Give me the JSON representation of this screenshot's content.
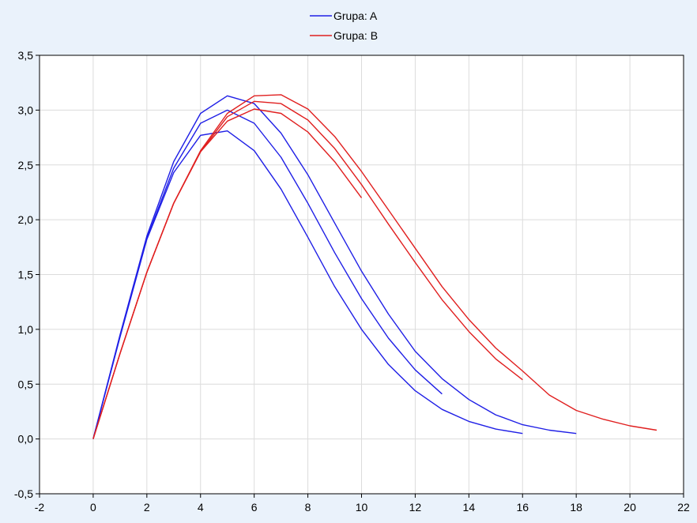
{
  "chart_data": {
    "type": "line",
    "title": "",
    "xlabel": "",
    "ylabel": "",
    "xlim": [
      -2,
      22
    ],
    "ylim": [
      -0.5,
      3.5
    ],
    "x_ticks": [
      -2,
      0,
      2,
      4,
      6,
      8,
      10,
      12,
      14,
      16,
      18,
      20,
      22
    ],
    "y_ticks": [
      -0.5,
      0.0,
      0.5,
      1.0,
      1.5,
      2.0,
      2.5,
      3.0,
      3.5
    ],
    "x_tick_labels": [
      "-2",
      "0",
      "2",
      "4",
      "6",
      "8",
      "10",
      "12",
      "14",
      "16",
      "18",
      "20",
      "22"
    ],
    "y_tick_labels": [
      "-0,5",
      "0,0",
      "0,5",
      "1,0",
      "1,5",
      "2,0",
      "2,5",
      "3,0",
      "3,5"
    ],
    "grid": true,
    "legend": {
      "placement": "top-center",
      "entries": [
        {
          "label": "Grupa: A",
          "color": "#1f1fe6"
        },
        {
          "label": "Grupa: B",
          "color": "#e01f1f"
        }
      ]
    },
    "colors": {
      "A": "#1f1fe6",
      "B": "#e01f1f",
      "background": "#eaf2fb",
      "plot_area": "#ffffff",
      "grid": "#dcdcdc"
    },
    "series": [
      {
        "group": "A",
        "x": [
          0,
          1,
          2,
          3,
          4,
          5,
          6,
          7,
          8,
          9,
          10,
          11,
          12,
          13,
          14,
          15,
          16
        ],
        "y": [
          0.0,
          0.93,
          1.82,
          2.43,
          2.77,
          2.81,
          2.63,
          2.28,
          1.84,
          1.39,
          1.0,
          0.68,
          0.44,
          0.27,
          0.16,
          0.09,
          0.05
        ]
      },
      {
        "group": "A",
        "x": [
          0,
          1,
          2,
          3,
          4,
          5,
          6,
          7,
          8,
          9,
          10,
          11,
          12,
          13
        ],
        "y": [
          0.0,
          0.94,
          1.83,
          2.47,
          2.88,
          3.0,
          2.88,
          2.57,
          2.15,
          1.7,
          1.28,
          0.92,
          0.63,
          0.41
        ]
      },
      {
        "group": "A",
        "x": [
          0,
          1,
          2,
          3,
          4,
          5,
          6,
          7,
          8,
          9,
          10,
          11,
          12,
          13,
          14,
          15,
          16,
          17,
          18
        ],
        "y": [
          0.0,
          0.95,
          1.85,
          2.53,
          2.97,
          3.13,
          3.06,
          2.79,
          2.41,
          1.97,
          1.53,
          1.14,
          0.8,
          0.55,
          0.36,
          0.22,
          0.13,
          0.08,
          0.05
        ]
      },
      {
        "group": "B",
        "x": [
          0,
          1,
          2,
          3,
          4,
          5,
          6,
          7,
          8,
          9,
          10
        ],
        "y": [
          0.0,
          0.78,
          1.52,
          2.15,
          2.62,
          2.9,
          3.01,
          2.97,
          2.8,
          2.53,
          2.2
        ]
      },
      {
        "group": "B",
        "x": [
          0,
          1,
          2,
          3,
          4,
          5,
          6,
          7,
          8,
          9,
          10,
          11,
          12,
          13,
          14,
          15,
          16
        ],
        "y": [
          0.0,
          0.78,
          1.52,
          2.15,
          2.62,
          2.94,
          3.08,
          3.06,
          2.91,
          2.65,
          2.32,
          1.96,
          1.61,
          1.27,
          0.98,
          0.73,
          0.54
        ]
      },
      {
        "group": "B",
        "x": [
          0,
          1,
          2,
          3,
          4,
          5,
          6,
          7,
          8,
          9,
          10,
          11,
          12,
          13,
          14,
          15,
          16,
          17,
          18,
          19,
          20,
          21
        ],
        "y": [
          0.0,
          0.78,
          1.52,
          2.15,
          2.63,
          2.97,
          3.13,
          3.14,
          3.01,
          2.76,
          2.44,
          2.09,
          1.74,
          1.39,
          1.09,
          0.83,
          0.62,
          0.4,
          0.26,
          0.18,
          0.12,
          0.08
        ]
      }
    ]
  }
}
